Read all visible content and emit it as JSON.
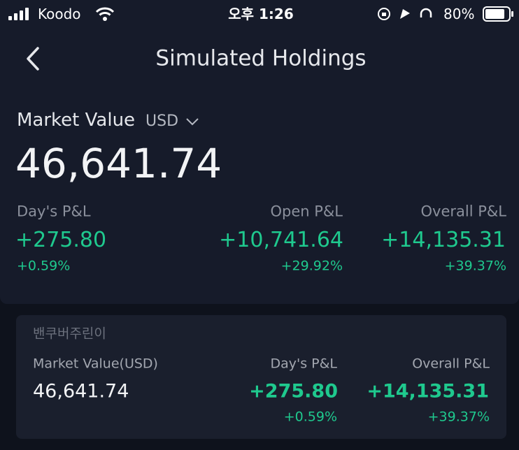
{
  "status_bar": {
    "carrier": "Koodo",
    "time": "오후 1:26",
    "battery": "80%"
  },
  "header": {
    "title": "Simulated Holdings"
  },
  "summary": {
    "label": "Market Value",
    "currency": "USD",
    "value": "46,641.74",
    "metrics": [
      {
        "label": "Day's P&L",
        "value": "+275.80",
        "percent": "+0.59%"
      },
      {
        "label": "Open P&L",
        "value": "+10,741.64",
        "percent": "+29.92%"
      },
      {
        "label": "Overall P&L",
        "value": "+14,135.31",
        "percent": "+39.37%"
      }
    ]
  },
  "account": {
    "name": "밴쿠버주린이",
    "columns": [
      {
        "label": "Market Value(USD)",
        "value": "46,641.74"
      },
      {
        "label": "Day's P&L",
        "value": "+275.80",
        "percent": "+0.59%"
      },
      {
        "label": "Overall P&L",
        "value": "+14,135.31",
        "percent": "+39.37%"
      }
    ]
  }
}
